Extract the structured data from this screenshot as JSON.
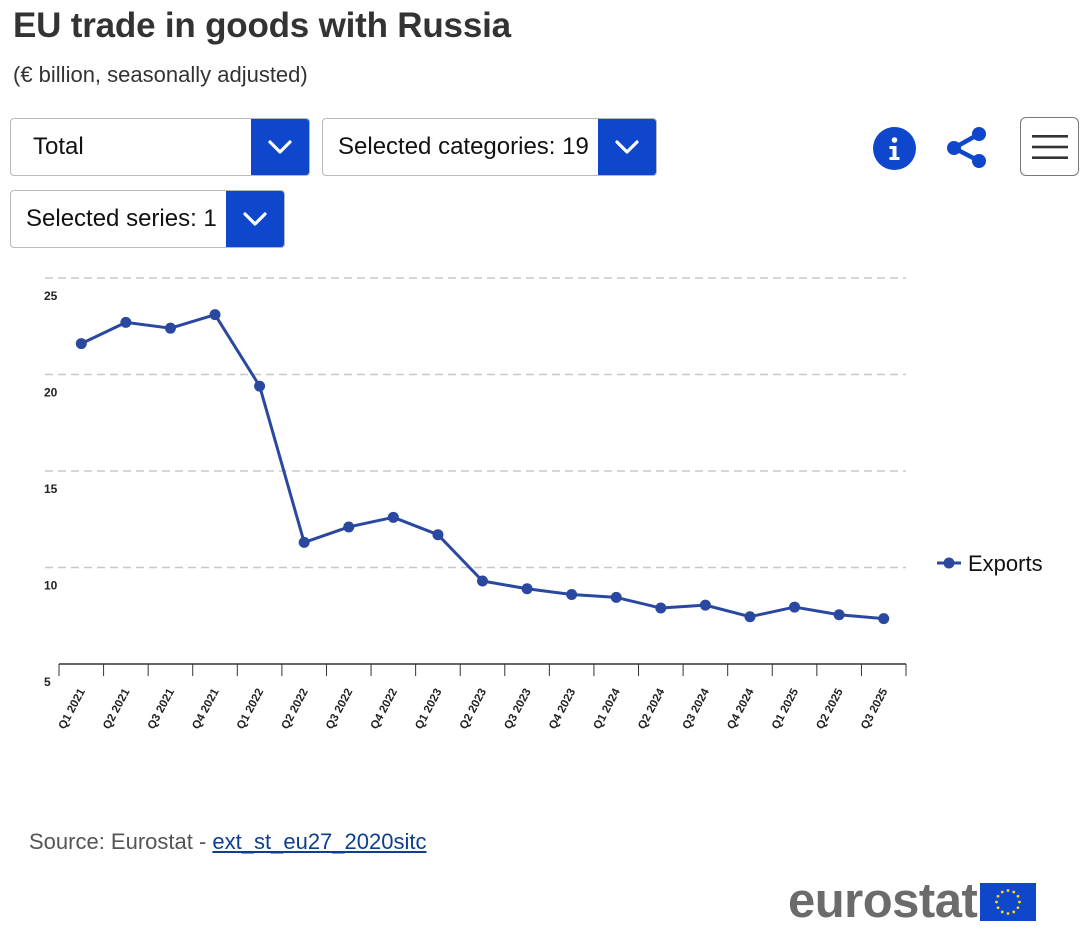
{
  "header": {
    "title": "EU trade in goods with Russia",
    "subtitle": "(€ billion, seasonally adjusted)"
  },
  "controls": {
    "dropdown_flow": "Total",
    "dropdown_categories": "Selected categories: 19",
    "dropdown_series": "Selected series: 1"
  },
  "icons": [
    "chevron-down-icon",
    "info-icon",
    "share-icon",
    "hamburger-menu-icon"
  ],
  "colors": {
    "accent": "#0e47cb",
    "series_line": "#2a48a0",
    "grid": "#c8c8c8",
    "title": "#333333",
    "logo_grey": "#6b6b6b",
    "eu_flag": "#0e47cb",
    "eu_stars": "#ffd617"
  },
  "chart_data": {
    "type": "line",
    "title": "EU trade in goods with Russia",
    "subtitle": "(€ billion, seasonally adjusted)",
    "xlabel": "",
    "ylabel": "",
    "ylim": [
      5,
      25
    ],
    "yticks": [
      5,
      10,
      15,
      20,
      25
    ],
    "grid": true,
    "legend_position": "right",
    "categories": [
      "Q1 2021",
      "Q2 2021",
      "Q3 2021",
      "Q4 2021",
      "Q1 2022",
      "Q2 2022",
      "Q3 2022",
      "Q4 2022",
      "Q1 2023",
      "Q2 2023",
      "Q3 2023",
      "Q4 2023",
      "Q1 2024",
      "Q2 2024",
      "Q3 2024",
      "Q4 2024",
      "Q1 2025",
      "Q2 2025",
      "Q3 2025"
    ],
    "series": [
      {
        "name": "Exports",
        "values": [
          21.6,
          22.7,
          22.4,
          23.1,
          19.4,
          11.3,
          12.1,
          12.6,
          11.7,
          9.3,
          8.9,
          8.6,
          8.45,
          7.9,
          8.05,
          7.45,
          7.95,
          7.55,
          7.35
        ]
      }
    ]
  },
  "footer": {
    "source_prefix": "Source: Eurostat - ",
    "source_link": "ext_st_eu27_2020sitc",
    "logo_text": "eurostat"
  }
}
